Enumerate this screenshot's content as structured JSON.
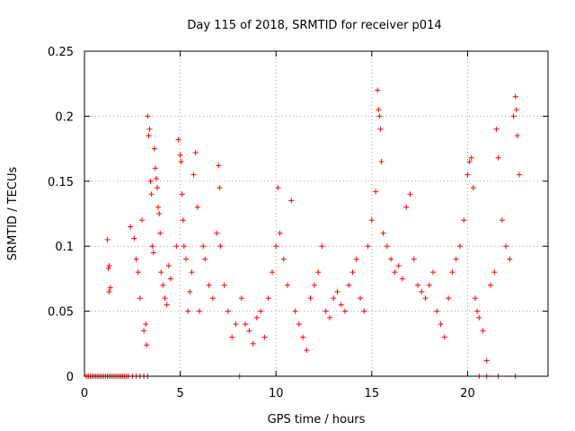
{
  "chart_data": {
    "type": "scatter",
    "title": "Day 115 of 2018, SRMTID for receiver p014",
    "xlabel": "GPS time / hours",
    "ylabel": "SRMTID / TECUs",
    "xlim": [
      0,
      24.2
    ],
    "ylim": [
      0,
      0.25
    ],
    "grid": true,
    "marker": "+",
    "color": "#ff0000",
    "xticks": [
      0,
      5,
      10,
      15,
      20
    ],
    "xtick_labels": [
      "0",
      "5",
      "10",
      "15",
      "20"
    ],
    "yticks": [
      0,
      0.05,
      0.1,
      0.15,
      0.2,
      0.25
    ],
    "ytick_labels": [
      "0",
      "0.05",
      "0.1",
      "0.15",
      "0.2",
      "0.25"
    ],
    "series": [
      {
        "name": "SRMTID",
        "points": [
          [
            0.1,
            0
          ],
          [
            0.2,
            0
          ],
          [
            0.3,
            0
          ],
          [
            0.4,
            0
          ],
          [
            0.5,
            0
          ],
          [
            0.6,
            0
          ],
          [
            0.7,
            0
          ],
          [
            0.8,
            0
          ],
          [
            0.9,
            0
          ],
          [
            1.0,
            0
          ],
          [
            1.1,
            0
          ],
          [
            1.2,
            0
          ],
          [
            1.3,
            0
          ],
          [
            1.4,
            0
          ],
          [
            1.5,
            0
          ],
          [
            1.6,
            0
          ],
          [
            1.7,
            0
          ],
          [
            1.8,
            0
          ],
          [
            1.9,
            0
          ],
          [
            2.0,
            0
          ],
          [
            2.1,
            0
          ],
          [
            2.2,
            0
          ],
          [
            2.3,
            0
          ],
          [
            2.5,
            0
          ],
          [
            2.7,
            0
          ],
          [
            2.9,
            0
          ],
          [
            3.1,
            0
          ],
          [
            3.3,
            0
          ],
          [
            8.1,
            0
          ],
          [
            20.6,
            0
          ],
          [
            21.0,
            0
          ],
          [
            21.6,
            0
          ],
          [
            22.5,
            0
          ],
          [
            1.2,
            0.105
          ],
          [
            1.25,
            0.083
          ],
          [
            1.3,
            0.085
          ],
          [
            1.35,
            0.068
          ],
          [
            1.28,
            0.065
          ],
          [
            2.4,
            0.115
          ],
          [
            2.6,
            0.106
          ],
          [
            2.7,
            0.09
          ],
          [
            2.8,
            0.08
          ],
          [
            2.9,
            0.06
          ],
          [
            3.0,
            0.12
          ],
          [
            3.1,
            0.035
          ],
          [
            3.2,
            0.04
          ],
          [
            3.25,
            0.024
          ],
          [
            3.3,
            0.2
          ],
          [
            3.35,
            0.185
          ],
          [
            3.4,
            0.19
          ],
          [
            3.45,
            0.15
          ],
          [
            3.5,
            0.14
          ],
          [
            3.55,
            0.1
          ],
          [
            3.6,
            0.095
          ],
          [
            3.65,
            0.175
          ],
          [
            3.7,
            0.16
          ],
          [
            3.75,
            0.152
          ],
          [
            3.8,
            0.145
          ],
          [
            3.85,
            0.13
          ],
          [
            3.9,
            0.125
          ],
          [
            3.95,
            0.11
          ],
          [
            4.0,
            0.08
          ],
          [
            4.1,
            0.07
          ],
          [
            4.2,
            0.06
          ],
          [
            4.3,
            0.055
          ],
          [
            4.4,
            0.085
          ],
          [
            4.5,
            0.075
          ],
          [
            4.8,
            0.1
          ],
          [
            4.9,
            0.182
          ],
          [
            5.0,
            0.17
          ],
          [
            5.05,
            0.165
          ],
          [
            5.1,
            0.14
          ],
          [
            5.15,
            0.12
          ],
          [
            5.2,
            0.1
          ],
          [
            5.3,
            0.09
          ],
          [
            5.4,
            0.05
          ],
          [
            5.5,
            0.065
          ],
          [
            5.6,
            0.08
          ],
          [
            5.7,
            0.155
          ],
          [
            5.8,
            0.172
          ],
          [
            5.9,
            0.13
          ],
          [
            6.0,
            0.05
          ],
          [
            6.2,
            0.1
          ],
          [
            6.3,
            0.09
          ],
          [
            6.5,
            0.07
          ],
          [
            6.7,
            0.06
          ],
          [
            6.9,
            0.11
          ],
          [
            7.0,
            0.162
          ],
          [
            7.05,
            0.145
          ],
          [
            7.1,
            0.1
          ],
          [
            7.3,
            0.07
          ],
          [
            7.5,
            0.05
          ],
          [
            7.7,
            0.03
          ],
          [
            7.9,
            0.04
          ],
          [
            8.2,
            0.06
          ],
          [
            8.4,
            0.04
          ],
          [
            8.6,
            0.035
          ],
          [
            8.8,
            0.025
          ],
          [
            9.0,
            0.045
          ],
          [
            9.2,
            0.05
          ],
          [
            9.4,
            0.03
          ],
          [
            9.6,
            0.06
          ],
          [
            9.8,
            0.08
          ],
          [
            10.0,
            0.1
          ],
          [
            10.1,
            0.145
          ],
          [
            10.2,
            0.11
          ],
          [
            10.4,
            0.09
          ],
          [
            10.6,
            0.07
          ],
          [
            10.8,
            0.135
          ],
          [
            11.0,
            0.05
          ],
          [
            11.2,
            0.04
          ],
          [
            11.4,
            0.03
          ],
          [
            11.6,
            0.02
          ],
          [
            11.8,
            0.06
          ],
          [
            12.0,
            0.07
          ],
          [
            12.2,
            0.08
          ],
          [
            12.4,
            0.1
          ],
          [
            12.6,
            0.05
          ],
          [
            12.8,
            0.045
          ],
          [
            13.0,
            0.06
          ],
          [
            13.2,
            0.065
          ],
          [
            13.4,
            0.055
          ],
          [
            13.6,
            0.05
          ],
          [
            13.8,
            0.07
          ],
          [
            14.0,
            0.08
          ],
          [
            14.2,
            0.09
          ],
          [
            14.4,
            0.06
          ],
          [
            14.6,
            0.05
          ],
          [
            14.8,
            0.1
          ],
          [
            15.0,
            0.12
          ],
          [
            15.2,
            0.142
          ],
          [
            15.3,
            0.22
          ],
          [
            15.35,
            0.205
          ],
          [
            15.4,
            0.2
          ],
          [
            15.45,
            0.19
          ],
          [
            15.5,
            0.165
          ],
          [
            15.6,
            0.11
          ],
          [
            15.8,
            0.1
          ],
          [
            16.0,
            0.09
          ],
          [
            16.2,
            0.08
          ],
          [
            16.4,
            0.085
          ],
          [
            16.6,
            0.075
          ],
          [
            16.8,
            0.13
          ],
          [
            17.0,
            0.14
          ],
          [
            17.2,
            0.09
          ],
          [
            17.4,
            0.07
          ],
          [
            17.6,
            0.065
          ],
          [
            17.8,
            0.06
          ],
          [
            18.0,
            0.07
          ],
          [
            18.2,
            0.08
          ],
          [
            18.4,
            0.05
          ],
          [
            18.6,
            0.04
          ],
          [
            18.8,
            0.03
          ],
          [
            19.0,
            0.06
          ],
          [
            19.2,
            0.08
          ],
          [
            19.4,
            0.09
          ],
          [
            19.6,
            0.1
          ],
          [
            19.8,
            0.12
          ],
          [
            20.0,
            0.155
          ],
          [
            20.1,
            0.165
          ],
          [
            20.2,
            0.168
          ],
          [
            20.3,
            0.145
          ],
          [
            20.4,
            0.06
          ],
          [
            20.5,
            0.05
          ],
          [
            20.6,
            0.045
          ],
          [
            20.8,
            0.035
          ],
          [
            21.0,
            0.012
          ],
          [
            21.2,
            0.07
          ],
          [
            21.4,
            0.08
          ],
          [
            21.5,
            0.19
          ],
          [
            21.6,
            0.168
          ],
          [
            21.8,
            0.12
          ],
          [
            22.0,
            0.1
          ],
          [
            22.2,
            0.09
          ],
          [
            22.4,
            0.2
          ],
          [
            22.5,
            0.215
          ],
          [
            22.55,
            0.205
          ],
          [
            22.6,
            0.185
          ],
          [
            22.7,
            0.155
          ]
        ]
      }
    ]
  }
}
